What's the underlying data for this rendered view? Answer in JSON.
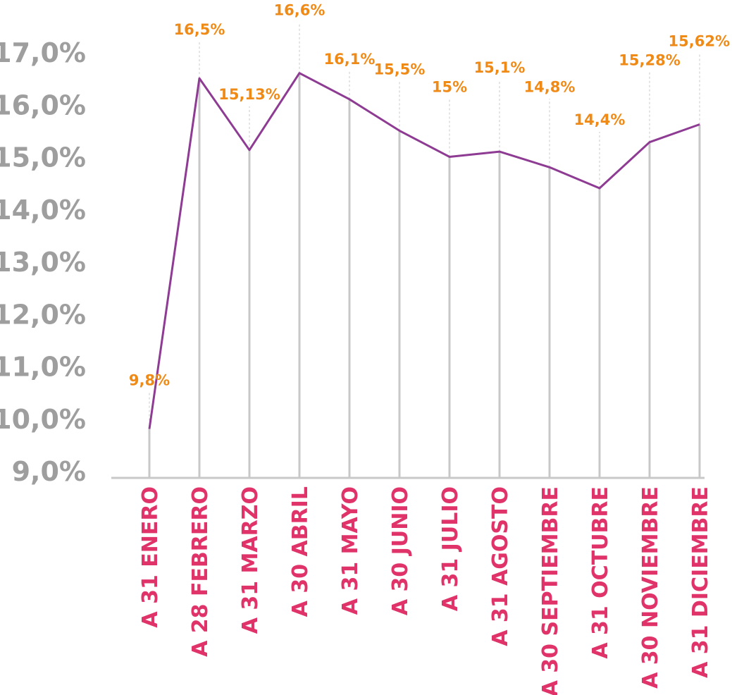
{
  "chart_data": {
    "type": "line",
    "title": "",
    "xlabel": "",
    "ylabel": "",
    "ylim": [
      9.0,
      17.0
    ],
    "grid": false,
    "y_ticks": [
      "9,0%",
      "10,0%",
      "11,0%",
      "12,0%",
      "13,0%",
      "14,0%",
      "15,0%",
      "16,0%",
      "17,0%"
    ],
    "categories": [
      "A 31 ENERO",
      "A 28 FEBRERO",
      "A 31 MARZO",
      "A 30 ABRIL",
      "A 31 MAYO",
      "A 30 JUNIO",
      "A 31 JULIO",
      "A 31 AGOSTO",
      "A 30 SEPTIEMBRE",
      "A 31 OCTUBRE",
      "A 30 NOVIEMBRE",
      "A 31 DICIEMBRE"
    ],
    "series": [
      {
        "values": [
          9.8,
          16.5,
          15.13,
          16.6,
          16.1,
          15.5,
          15.0,
          15.1,
          14.8,
          14.4,
          15.28,
          15.62
        ],
        "labels": [
          "9,8%",
          "16,5%",
          "15,13%",
          "16,6%",
          "16,1%",
          "15,5%",
          "15%",
          "15,1%",
          "14,8%",
          "14,4%",
          "15,28%",
          "15,62%"
        ]
      }
    ],
    "colors": {
      "line": "#8e3c93",
      "data_label": "#ef8a17",
      "x_tick": "#e0336a",
      "y_tick": "#9e9e9e",
      "gridline": "#c8c8c8"
    }
  }
}
